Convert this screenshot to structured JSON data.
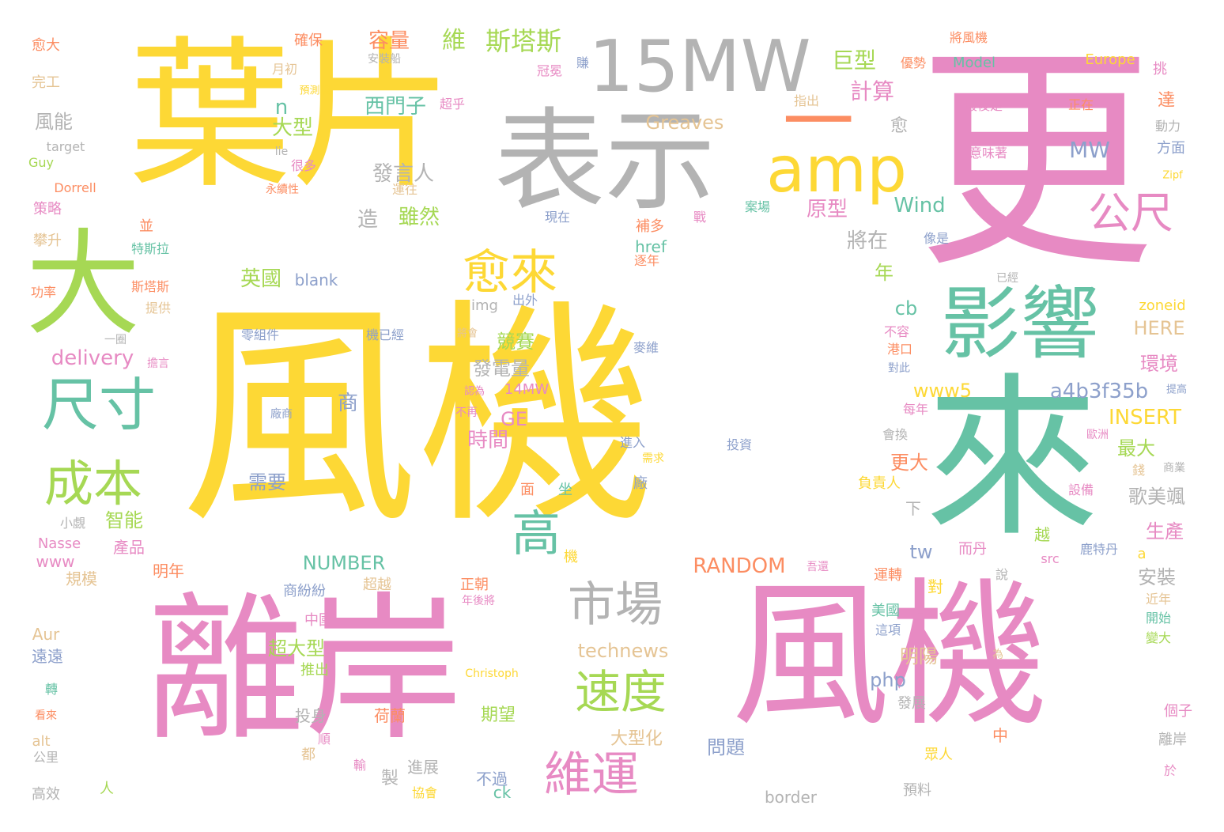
{
  "palette": {
    "yellow": "#fdd835",
    "pink": "#e78ac3",
    "teal": "#66c2a5",
    "green": "#a6d854",
    "gray": "#b3b3b3",
    "orange": "#fc8d62",
    "blue": "#8da0cb",
    "tan": "#e5c494"
  },
  "words": [
    {
      "text": "風機",
      "color": "yellow"
    },
    {
      "text": "更",
      "color": "pink"
    },
    {
      "text": "葉片",
      "color": "yellow"
    },
    {
      "text": "離岸",
      "color": "pink"
    },
    {
      "text": "風機",
      "color": "pink"
    },
    {
      "text": "來",
      "color": "teal"
    },
    {
      "text": "表示",
      "color": "gray"
    },
    {
      "text": "15MW",
      "color": "gray"
    },
    {
      "text": "amp",
      "color": "yellow"
    },
    {
      "text": "大",
      "color": "green"
    },
    {
      "text": "影響",
      "color": "teal"
    },
    {
      "text": "一",
      "color": "orange"
    },
    {
      "text": "尺寸",
      "color": "teal"
    },
    {
      "text": "成本",
      "color": "green"
    },
    {
      "text": "愈來",
      "color": "yellow"
    },
    {
      "text": "高",
      "color": "teal"
    },
    {
      "text": "市場",
      "color": "gray"
    },
    {
      "text": "速度",
      "color": "green"
    },
    {
      "text": "維運",
      "color": "pink"
    },
    {
      "text": "公尺",
      "color": "pink"
    },
    {
      "text": "斯塔斯",
      "color": "green"
    },
    {
      "text": "容量",
      "color": "orange"
    },
    {
      "text": "維",
      "color": "green"
    },
    {
      "text": "巨型",
      "color": "green"
    },
    {
      "text": "計算",
      "color": "pink"
    },
    {
      "text": "西門子",
      "color": "teal"
    },
    {
      "text": "Greaves",
      "color": "tan"
    },
    {
      "text": "MW",
      "color": "blue"
    },
    {
      "text": "風能",
      "color": "gray"
    },
    {
      "text": "發言人",
      "color": "gray"
    },
    {
      "text": "大型",
      "color": "green"
    },
    {
      "text": "原型",
      "color": "pink"
    },
    {
      "text": "Wind",
      "color": "teal"
    },
    {
      "text": "將在",
      "color": "gray"
    },
    {
      "text": "雖然",
      "color": "green"
    },
    {
      "text": "造",
      "color": "gray"
    },
    {
      "text": "英國",
      "color": "green"
    },
    {
      "text": "blank",
      "color": "blue"
    },
    {
      "text": "年",
      "color": "green"
    },
    {
      "text": "delivery",
      "color": "pink"
    },
    {
      "text": "競賽",
      "color": "green"
    },
    {
      "text": "cb",
      "color": "teal"
    },
    {
      "text": "HERE",
      "color": "tan"
    },
    {
      "text": "環境",
      "color": "pink"
    },
    {
      "text": "發電量",
      "color": "gray"
    },
    {
      "text": "www5",
      "color": "yellow"
    },
    {
      "text": "a4b3f35b",
      "color": "blue"
    },
    {
      "text": "INSERT",
      "color": "yellow"
    },
    {
      "text": "商",
      "color": "blue"
    },
    {
      "text": "GE",
      "color": "pink"
    },
    {
      "text": "時間",
      "color": "pink"
    },
    {
      "text": "最大",
      "color": "green"
    },
    {
      "text": "更大",
      "color": "orange"
    },
    {
      "text": "歌美颯",
      "color": "gray"
    },
    {
      "text": "智能",
      "color": "green"
    },
    {
      "text": "需要",
      "color": "blue"
    },
    {
      "text": "生產",
      "color": "pink"
    },
    {
      "text": "NUMBER",
      "color": "teal"
    },
    {
      "text": "RANDOM",
      "color": "orange"
    },
    {
      "text": "tw",
      "color": "blue"
    },
    {
      "text": "安裝",
      "color": "gray"
    },
    {
      "text": "technews",
      "color": "tan"
    },
    {
      "text": "超大型",
      "color": "green"
    },
    {
      "text": "明陽",
      "color": "tan"
    },
    {
      "text": "php",
      "color": "blue"
    },
    {
      "text": "問題",
      "color": "blue"
    },
    {
      "text": "大型化",
      "color": "tan"
    },
    {
      "text": "期望",
      "color": "green"
    },
    {
      "text": "荷蘭",
      "color": "orange"
    },
    {
      "text": "投身",
      "color": "gray"
    },
    {
      "text": "進展",
      "color": "gray"
    },
    {
      "text": "製",
      "color": "gray"
    },
    {
      "text": "不過",
      "color": "blue"
    },
    {
      "text": "ck",
      "color": "teal"
    },
    {
      "text": "border",
      "color": "gray"
    },
    {
      "text": "www",
      "color": "pink"
    },
    {
      "text": "Nasse",
      "color": "pink"
    },
    {
      "text": "產品",
      "color": "pink"
    },
    {
      "text": "規模",
      "color": "tan"
    },
    {
      "text": "明年",
      "color": "orange"
    },
    {
      "text": "商紛紛",
      "color": "blue"
    },
    {
      "text": "中國",
      "color": "pink"
    },
    {
      "text": "超越",
      "color": "tan"
    },
    {
      "text": "正朝",
      "color": "orange"
    },
    {
      "text": "美國",
      "color": "teal"
    },
    {
      "text": "遠遠",
      "color": "blue"
    },
    {
      "text": "Aur",
      "color": "tan"
    },
    {
      "text": "推出",
      "color": "green"
    },
    {
      "text": "Christoph",
      "color": "yellow"
    },
    {
      "text": "alt",
      "color": "tan"
    },
    {
      "text": "公里",
      "color": "gray"
    },
    {
      "text": "高效",
      "color": "gray"
    },
    {
      "text": "人",
      "color": "green"
    },
    {
      "text": "都",
      "color": "tan"
    },
    {
      "text": "協會",
      "color": "yellow"
    },
    {
      "text": "預料",
      "color": "gray"
    },
    {
      "text": "眾人",
      "color": "yellow"
    },
    {
      "text": "發展",
      "color": "gray"
    },
    {
      "text": "中",
      "color": "orange"
    },
    {
      "text": "離岸",
      "color": "gray"
    },
    {
      "text": "個子",
      "color": "pink"
    },
    {
      "text": "於",
      "color": "pink"
    },
    {
      "text": "愈大",
      "color": "orange"
    },
    {
      "text": "完工",
      "color": "tan"
    },
    {
      "text": "target",
      "color": "gray"
    },
    {
      "text": "Guy",
      "color": "green"
    },
    {
      "text": "Dorrell",
      "color": "orange"
    },
    {
      "text": "策略",
      "color": "pink"
    },
    {
      "text": "攀升",
      "color": "tan"
    },
    {
      "text": "功率",
      "color": "orange"
    },
    {
      "text": "確保",
      "color": "orange"
    },
    {
      "text": "月初",
      "color": "tan"
    },
    {
      "text": "預測現",
      "color": "yellow"
    },
    {
      "text": "lie",
      "color": "gray"
    },
    {
      "text": "很多",
      "color": "pink"
    },
    {
      "text": "永續性",
      "color": "orange"
    },
    {
      "text": "並",
      "color": "orange"
    },
    {
      "text": "特斯拉",
      "color": "teal"
    },
    {
      "text": "斯塔斯",
      "color": "orange"
    },
    {
      "text": "提供",
      "color": "tan"
    },
    {
      "text": "一圈",
      "color": "gray"
    },
    {
      "text": "擔言",
      "color": "pink"
    },
    {
      "text": "超乎",
      "color": "pink"
    },
    {
      "text": "安裝船",
      "color": "gray"
    },
    {
      "text": "冠冕",
      "color": "pink"
    },
    {
      "text": "賺",
      "color": "blue"
    },
    {
      "text": "優勢",
      "color": "orange"
    },
    {
      "text": "Model",
      "color": "teal"
    },
    {
      "text": "將風機",
      "color": "orange"
    },
    {
      "text": "Europe",
      "color": "yellow"
    },
    {
      "text": "挑",
      "color": "pink"
    },
    {
      "text": "指出",
      "color": "tan"
    },
    {
      "text": "最後是",
      "color": "pink"
    },
    {
      "text": "正在",
      "color": "orange"
    },
    {
      "text": "達",
      "color": "orange"
    },
    {
      "text": "動力",
      "color": "gray"
    },
    {
      "text": "方面",
      "color": "blue"
    },
    {
      "text": "意味著",
      "color": "pink"
    },
    {
      "text": "Zipf",
      "color": "yellow"
    },
    {
      "text": "愈",
      "color": "gray"
    },
    {
      "text": "n",
      "color": "teal"
    },
    {
      "text": "運往",
      "color": "tan"
    },
    {
      "text": "現在",
      "color": "blue"
    },
    {
      "text": "戰",
      "color": "pink"
    },
    {
      "text": "案場",
      "color": "teal"
    },
    {
      "text": "像是",
      "color": "blue"
    },
    {
      "text": "補多",
      "color": "orange"
    },
    {
      "text": "href",
      "color": "teal"
    },
    {
      "text": "逐年",
      "color": "orange"
    },
    {
      "text": "已經",
      "color": "gray"
    },
    {
      "text": "img",
      "color": "gray"
    },
    {
      "text": "出外",
      "color": "blue"
    },
    {
      "text": "zoneid",
      "color": "yellow"
    },
    {
      "text": "零組件",
      "color": "blue"
    },
    {
      "text": "機已經",
      "color": "blue"
    },
    {
      "text": "將會",
      "color": "tan"
    },
    {
      "text": "麥維",
      "color": "blue"
    },
    {
      "text": "不容",
      "color": "pink"
    },
    {
      "text": "港口",
      "color": "orange"
    },
    {
      "text": "對此",
      "color": "blue"
    },
    {
      "text": "認為",
      "color": "pink"
    },
    {
      "text": "14MW",
      "color": "pink"
    },
    {
      "text": "提高",
      "color": "blue"
    },
    {
      "text": "廠商",
      "color": "blue"
    },
    {
      "text": "不再",
      "color": "pink"
    },
    {
      "text": "每年",
      "color": "pink"
    },
    {
      "text": "會換",
      "color": "gray"
    },
    {
      "text": "進入",
      "color": "blue"
    },
    {
      "text": "歐洲",
      "color": "pink"
    },
    {
      "text": "投資",
      "color": "blue"
    },
    {
      "text": "需求",
      "color": "yellow"
    },
    {
      "text": "廠",
      "color": "blue"
    },
    {
      "text": "設備",
      "color": "pink"
    },
    {
      "text": "錢",
      "color": "tan"
    },
    {
      "text": "商業",
      "color": "gray"
    },
    {
      "text": "面",
      "color": "orange"
    },
    {
      "text": "坐",
      "color": "teal"
    },
    {
      "text": "負責人",
      "color": "yellow"
    },
    {
      "text": "下",
      "color": "gray"
    },
    {
      "text": "小覷",
      "color": "gray"
    },
    {
      "text": "機",
      "color": "yellow"
    },
    {
      "text": "越",
      "color": "green"
    },
    {
      "text": "而丹",
      "color": "pink"
    },
    {
      "text": "鹿特丹",
      "color": "blue"
    },
    {
      "text": "src",
      "color": "pink"
    },
    {
      "text": "a",
      "color": "yellow"
    },
    {
      "text": "吾還",
      "color": "pink"
    },
    {
      "text": "運轉",
      "color": "orange"
    },
    {
      "text": "說",
      "color": "gray"
    },
    {
      "text": "對",
      "color": "yellow"
    },
    {
      "text": "年後將",
      "color": "pink"
    },
    {
      "text": "近年",
      "color": "tan"
    },
    {
      "text": "開始",
      "color": "teal"
    },
    {
      "text": "變大",
      "color": "green"
    },
    {
      "text": "這項",
      "color": "blue"
    },
    {
      "text": "é",
      "color": "pink"
    },
    {
      "text": "為",
      "color": "tan"
    },
    {
      "text": "轉",
      "color": "teal"
    },
    {
      "text": "看來",
      "color": "orange"
    },
    {
      "text": "順",
      "color": "pink"
    },
    {
      "text": "輸",
      "color": "pink"
    }
  ]
}
